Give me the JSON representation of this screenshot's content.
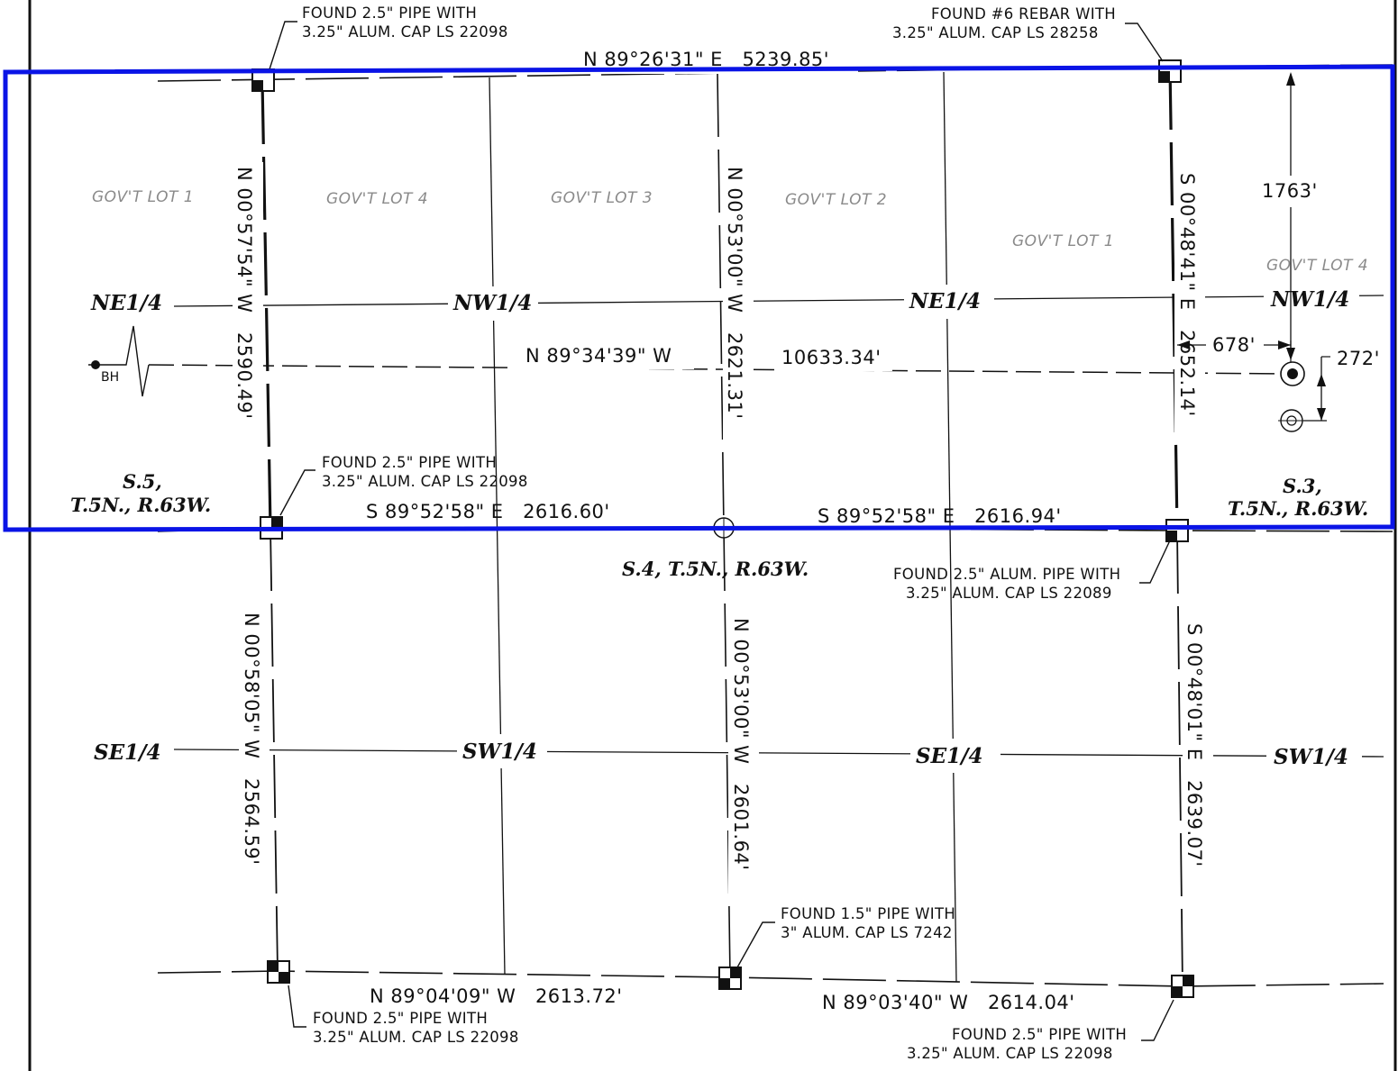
{
  "monuments": {
    "nw_top": [
      "FOUND 2.5\" PIPE WITH",
      "3.25\" ALUM. CAP LS 22098"
    ],
    "ne_top": [
      "FOUND #6 REBAR WITH",
      "3.25\" ALUM. CAP LS 28258"
    ],
    "mid_west": [
      "FOUND 2.5\" PIPE WITH",
      "3.25\" ALUM. CAP LS 22098"
    ],
    "mid_east": [
      "FOUND 2.5\" ALUM. PIPE WITH",
      "3.25\" ALUM. CAP LS 22089"
    ],
    "bottom_center": [
      "FOUND 1.5\" PIPE WITH",
      "3\" ALUM. CAP LS 7242"
    ],
    "bottom_west": [
      "FOUND 2.5\" PIPE WITH",
      "3.25\" ALUM. CAP LS 22098"
    ],
    "bottom_east": [
      "FOUND 2.5\" PIPE WITH",
      "3.25\" ALUM. CAP LS 22098"
    ]
  },
  "bearings": {
    "top": "N 89°26'31\" E   5239.85'",
    "wellbore": "N 89°34'39\" W",
    "wellbore_length": "10633.34'",
    "mid_west": "S 89°52'58\" E   2616.60'",
    "mid_east": "S 89°52'58\" E   2616.94'",
    "bottom_west": "N 89°04'09\" W   2613.72'",
    "bottom_east": "N 89°03'40\" W   2614.04'",
    "west_upper": "N 00°57'54\" W   2590.49'",
    "center_upper": "N 00°53'00\" W   2621.31'",
    "east_upper": "S 00°48'41\" E   2652.14'",
    "west_lower": "N 00°58'05\" W   2564.59'",
    "center_lower": "N 00°53'00\" W   2601.64'",
    "east_lower": "S 00°48'01\" E   2639.07'"
  },
  "offsets": {
    "north": "1763'",
    "west": "678'",
    "south": "272'"
  },
  "lots": [
    "GOV'T LOT 1",
    "GOV'T LOT 4",
    "GOV'T LOT 3",
    "GOV'T LOT 2",
    "GOV'T LOT 1",
    "GOV'T LOT 4"
  ],
  "quarters": {
    "row1": [
      "NE1/4",
      "NW1/4",
      "NE1/4",
      "NW1/4"
    ],
    "row2": [
      "SE1/4",
      "SW1/4",
      "SE1/4",
      "SW1/4"
    ]
  },
  "sections": {
    "s5": [
      "S.5,",
      "T.5N., R.63W."
    ],
    "s4": "S.4, T.5N., R.63W.",
    "s3": [
      "S.3,",
      "T.5N., R.63W."
    ]
  },
  "bh_label": "BH",
  "colors": {
    "line": "#111111",
    "highlight": "#0a14e6",
    "lot_text": "#8a8a8a"
  }
}
